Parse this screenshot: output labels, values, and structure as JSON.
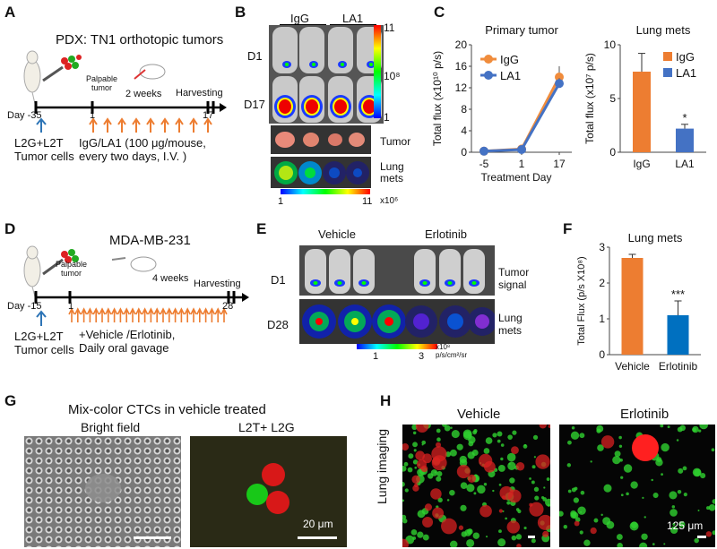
{
  "panelA": {
    "label": "A",
    "title": "PDX: TN1 orthotopic tumors",
    "palpable": "Palpable\ntumor",
    "two_weeks": "2 weeks",
    "harvesting": "Harvesting",
    "day": "Day -35",
    "t1": "1",
    "t17": "17",
    "cells": "L2G+L2T\nTumor cells",
    "treatment": "IgG/LA1 (100 μg/mouse,\nevery two days, I.V. )"
  },
  "panelB": {
    "label": "B",
    "col1": "IgG",
    "col2": "LA1",
    "row1": "D1",
    "row2": "D17",
    "tumor": "Tumor",
    "lung": "Lung\nmets",
    "scale_top": "11",
    "scale_mid": "10⁸",
    "scale_bot": "1",
    "hscale_left": "1",
    "hscale_right": "11",
    "hscale_unit": "x10⁶"
  },
  "panelC": {
    "label": "C"
  },
  "panelD": {
    "label": "D",
    "title": "MDA-MB-231",
    "palpable": "Palpable\ntumor",
    "weeks": "4 weeks",
    "harvesting": "Harvesting",
    "day": "Day -15",
    "t1": "1",
    "t28": "28",
    "cells": "L2G+L2T\nTumor cells",
    "treatment": "+Vehicle /Erlotinib,\nDaily oral gavage"
  },
  "panelE": {
    "label": "E",
    "col1": "Vehicle",
    "col2": "Erlotinib",
    "row1": "D1",
    "row2": "D28",
    "tumor": "Tumor\nsignal",
    "lung": "Lung\nmets",
    "scale_left": "1",
    "scale_right": "3",
    "unit": "x10⁸\np/s/cm²/sr"
  },
  "panelF": {
    "label": "F"
  },
  "panelG": {
    "label": "G",
    "title": "Mix-color CTCs in vehicle treated",
    "bf": "Bright field",
    "fl": "L2T+ L2G",
    "scalebar": "20 μm"
  },
  "panelH": {
    "label": "H",
    "col1": "Vehicle",
    "col2": "Erlotinib",
    "side": "Lung imaging",
    "scalebar": "125 μm"
  },
  "chart_data": [
    {
      "type": "line",
      "title": "Primary tumor",
      "categories": [
        "-5",
        "1",
        "17"
      ],
      "xlabel": "Treatment Day",
      "ylabel": "Total flux (x10¹⁰ p/s)",
      "ylim": [
        0,
        20
      ],
      "yticks": [
        0,
        4,
        8,
        12,
        16,
        20
      ],
      "series": [
        {
          "name": "IgG",
          "values": [
            0.2,
            0.6,
            14.0
          ],
          "errors": [
            0,
            0,
            2.0
          ],
          "color": "#F08C3C"
        },
        {
          "name": "LA1",
          "values": [
            0.2,
            0.5,
            12.8
          ],
          "errors": [
            0,
            0,
            1.0
          ],
          "color": "#4472C4"
        }
      ]
    },
    {
      "type": "bar",
      "title": "Lung mets",
      "categories": [
        "IgG",
        "LA1"
      ],
      "values": [
        7.5,
        2.2
      ],
      "errors": [
        1.7,
        0.4
      ],
      "colors": [
        "#ED7D31",
        "#4472C4"
      ],
      "ylabel": "Total flux (x10⁷ p/s)",
      "ylim": [
        0,
        10
      ],
      "yticks": [
        0,
        5,
        10
      ],
      "legend": [
        "IgG",
        "LA1"
      ],
      "annotation": "*"
    },
    {
      "type": "bar",
      "title": "Lung mets",
      "categories": [
        "Vehicle",
        "Erlotinib"
      ],
      "values": [
        2.7,
        1.1
      ],
      "errors": [
        0.1,
        0.4
      ],
      "colors": [
        "#ED7D31",
        "#0070C0"
      ],
      "ylabel": "Total Flux (p/s X10⁸)",
      "ylim": [
        0,
        3
      ],
      "yticks": [
        0,
        1,
        2,
        3
      ],
      "annotation": "***"
    }
  ]
}
